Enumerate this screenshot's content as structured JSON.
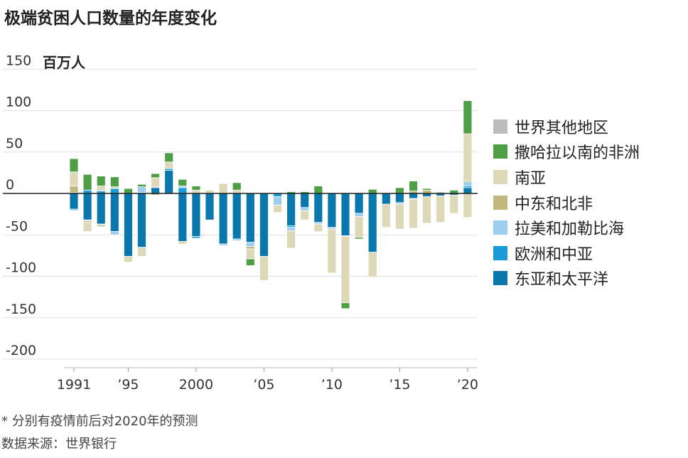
{
  "chart_data": {
    "type": "bar",
    "stacked": true,
    "title": "极端贫困人口数量的年度变化",
    "ylabel": "百万人",
    "ylim": [
      -200,
      150
    ],
    "yticks": [
      150,
      100,
      50,
      0,
      -50,
      -100,
      -150,
      -200
    ],
    "ytick_labels": [
      "150",
      "100",
      "50",
      "0",
      "-50",
      "-100",
      "-150",
      "-200"
    ],
    "x_tick_years": [
      1991,
      1995,
      2000,
      2005,
      2010,
      2015,
      2020
    ],
    "x_tick_labels": [
      "1991",
      "’95",
      "2000",
      "’05",
      "’10",
      "’15",
      "’20"
    ],
    "series_order": [
      "世界其他地区",
      "撒哈拉以南的非洲",
      "南亚",
      "中东和北非",
      "拉美和加勒比海",
      "欧洲和中亚",
      "东亚和太平洋"
    ],
    "legend": [
      {
        "name": "世界其他地区",
        "color": "#bcbcbc"
      },
      {
        "name": "撒哈拉以南的非洲",
        "color": "#4e9e45"
      },
      {
        "name": "南亚",
        "color": "#ddd9b8"
      },
      {
        "name": "中东和北非",
        "color": "#bfb97d"
      },
      {
        "name": "拉美和加勒比海",
        "color": "#9ccdec"
      },
      {
        "name": "欧洲和中亚",
        "color": "#1a9bd7"
      },
      {
        "name": "东亚和太平洋",
        "color": "#0a77ad"
      }
    ],
    "bars": [
      {
        "year": 1991,
        "segments": [
          {
            "s": "东亚和太平洋",
            "v": -19
          },
          {
            "s": "欧洲和中亚",
            "v": 1
          },
          {
            "s": "拉美和加勒比海",
            "v": -2
          },
          {
            "s": "中东和北非",
            "v": 8
          },
          {
            "s": "南亚",
            "v": 17
          },
          {
            "s": "撒哈拉以南的非洲",
            "v": 16
          }
        ]
      },
      {
        "year": 1992,
        "segments": [
          {
            "s": "东亚和太平洋",
            "v": -32
          },
          {
            "s": "欧洲和中亚",
            "v": 4
          },
          {
            "s": "拉美和加勒比海",
            "v": -1
          },
          {
            "s": "中东和北非",
            "v": -2
          },
          {
            "s": "南亚",
            "v": -11
          },
          {
            "s": "撒哈拉以南的非洲",
            "v": 19
          }
        ]
      },
      {
        "year": 1993,
        "segments": [
          {
            "s": "东亚和太平洋",
            "v": -37
          },
          {
            "s": "欧洲和中亚",
            "v": 3
          },
          {
            "s": "拉美和加勒比海",
            "v": -1
          },
          {
            "s": "中东和北非",
            "v": -2
          },
          {
            "s": "南亚",
            "v": 6
          },
          {
            "s": "撒哈拉以南的非洲",
            "v": 12
          }
        ]
      },
      {
        "year": 1994,
        "segments": [
          {
            "s": "东亚和太平洋",
            "v": -46
          },
          {
            "s": "欧洲和中亚",
            "v": 6
          },
          {
            "s": "拉美和加勒比海",
            "v": -4
          },
          {
            "s": "南亚",
            "v": 2
          },
          {
            "s": "撒哈拉以南的非洲",
            "v": 12
          }
        ]
      },
      {
        "year": 1995,
        "segments": [
          {
            "s": "东亚和太平洋",
            "v": -76
          },
          {
            "s": "欧洲和中亚",
            "v": 0
          },
          {
            "s": "南亚",
            "v": -7
          },
          {
            "s": "撒哈拉以南的非洲",
            "v": 6
          }
        ]
      },
      {
        "year": 1996,
        "segments": [
          {
            "s": "东亚和太平洋",
            "v": -65
          },
          {
            "s": "欧洲和中亚",
            "v": 1
          },
          {
            "s": "拉美和加勒比海",
            "v": 7
          },
          {
            "s": "南亚",
            "v": -11
          },
          {
            "s": "撒哈拉以南的非洲",
            "v": 3
          }
        ]
      },
      {
        "year": 1997,
        "segments": [
          {
            "s": "东亚和太平洋",
            "v": 7
          },
          {
            "s": "欧洲和中亚",
            "v": 1
          },
          {
            "s": "中东和北非",
            "v": -2
          },
          {
            "s": "南亚",
            "v": 11
          },
          {
            "s": "撒哈拉以南的非洲",
            "v": 5
          }
        ]
      },
      {
        "year": 1998,
        "segments": [
          {
            "s": "东亚和太平洋",
            "v": 28
          },
          {
            "s": "欧洲和中亚",
            "v": 2
          },
          {
            "s": "南亚",
            "v": 8
          },
          {
            "s": "撒哈拉以南的非洲",
            "v": 11
          }
        ]
      },
      {
        "year": 1999,
        "segments": [
          {
            "s": "东亚和太平洋",
            "v": -58
          },
          {
            "s": "欧洲和中亚",
            "v": 7
          },
          {
            "s": "拉美和加勒比海",
            "v": 2
          },
          {
            "s": "南亚",
            "v": -3
          },
          {
            "s": "撒哈拉以南的非洲",
            "v": 8
          }
        ]
      },
      {
        "year": 2000,
        "segments": [
          {
            "s": "东亚和太平洋",
            "v": -52
          },
          {
            "s": "欧洲和中亚",
            "v": -2
          },
          {
            "s": "南亚",
            "v": 4
          },
          {
            "s": "撒哈拉以南的非洲",
            "v": 5
          }
        ]
      },
      {
        "year": 2001,
        "segments": [
          {
            "s": "东亚和太平洋",
            "v": -32
          },
          {
            "s": "南亚",
            "v": 4
          }
        ]
      },
      {
        "year": 2002,
        "segments": [
          {
            "s": "东亚和太平洋",
            "v": -61
          },
          {
            "s": "拉美和加勒比海",
            "v": -2
          },
          {
            "s": "南亚",
            "v": 12
          }
        ]
      },
      {
        "year": 2003,
        "segments": [
          {
            "s": "东亚和太平洋",
            "v": -55
          },
          {
            "s": "拉美和加勒比海",
            "v": -2
          },
          {
            "s": "南亚",
            "v": 4
          },
          {
            "s": "撒哈拉以南的非洲",
            "v": 9
          }
        ]
      },
      {
        "year": 2004,
        "segments": [
          {
            "s": "东亚和太平洋",
            "v": -59
          },
          {
            "s": "拉美和加勒比海",
            "v": -5
          },
          {
            "s": "中东和北非",
            "v": -3
          },
          {
            "s": "南亚",
            "v": -12
          },
          {
            "s": "撒哈拉以南的非洲",
            "v": -8
          }
        ]
      },
      {
        "year": 2005,
        "segments": [
          {
            "s": "东亚和太平洋",
            "v": -76
          },
          {
            "s": "南亚",
            "v": -29
          }
        ]
      },
      {
        "year": 2006,
        "segments": [
          {
            "s": "欧洲和中亚",
            "v": -4
          },
          {
            "s": "拉美和加勒比海",
            "v": -10
          },
          {
            "s": "南亚",
            "v": -9
          }
        ]
      },
      {
        "year": 2007,
        "segments": [
          {
            "s": "东亚和太平洋",
            "v": -39
          },
          {
            "s": "欧洲和中亚",
            "v": -2
          },
          {
            "s": "拉美和加勒比海",
            "v": -4
          },
          {
            "s": "南亚",
            "v": -21
          },
          {
            "s": "撒哈拉以南的非洲",
            "v": 2
          }
        ]
      },
      {
        "year": 2008,
        "segments": [
          {
            "s": "东亚和太平洋",
            "v": -17
          },
          {
            "s": "拉美和加勒比海",
            "v": -4
          },
          {
            "s": "南亚",
            "v": -11
          },
          {
            "s": "撒哈拉以南的非洲",
            "v": 2
          }
        ]
      },
      {
        "year": 2009,
        "segments": [
          {
            "s": "东亚和太平洋",
            "v": -35
          },
          {
            "s": "拉美和加勒比海",
            "v": -2
          },
          {
            "s": "南亚",
            "v": -9
          },
          {
            "s": "撒哈拉以南的非洲",
            "v": 9
          }
        ]
      },
      {
        "year": 2010,
        "segments": [
          {
            "s": "东亚和太平洋",
            "v": -41
          },
          {
            "s": "拉美和加勒比海",
            "v": -2
          },
          {
            "s": "南亚",
            "v": -53
          }
        ]
      },
      {
        "year": 2011,
        "segments": [
          {
            "s": "东亚和太平洋",
            "v": -51
          },
          {
            "s": "拉美和加勒比海",
            "v": -1
          },
          {
            "s": "南亚",
            "v": -80
          },
          {
            "s": "撒哈拉以南的非洲",
            "v": -7
          }
        ]
      },
      {
        "year": 2012,
        "segments": [
          {
            "s": "东亚和太平洋",
            "v": -24
          },
          {
            "s": "拉美和加勒比海",
            "v": -4
          },
          {
            "s": "南亚",
            "v": -25
          },
          {
            "s": "撒哈拉以南的非洲",
            "v": -2
          }
        ]
      },
      {
        "year": 2013,
        "segments": [
          {
            "s": "东亚和太平洋",
            "v": -71
          },
          {
            "s": "南亚",
            "v": -30
          },
          {
            "s": "撒哈拉以南的非洲",
            "v": 5
          }
        ]
      },
      {
        "year": 2014,
        "segments": [
          {
            "s": "东亚和太平洋",
            "v": -13
          },
          {
            "s": "南亚",
            "v": -28
          }
        ]
      },
      {
        "year": 2015,
        "segments": [
          {
            "s": "东亚和太平洋",
            "v": -11
          },
          {
            "s": "拉美和加勒比海",
            "v": -2
          },
          {
            "s": "南亚",
            "v": -30
          },
          {
            "s": "撒哈拉以南的非洲",
            "v": 7
          }
        ]
      },
      {
        "year": 2016,
        "segments": [
          {
            "s": "东亚和太平洋",
            "v": -6
          },
          {
            "s": "拉美和加勒比海",
            "v": -1
          },
          {
            "s": "中东和北非",
            "v": 3
          },
          {
            "s": "南亚",
            "v": -35
          },
          {
            "s": "撒哈拉以南的非洲",
            "v": 12
          }
        ]
      },
      {
        "year": 2017,
        "segments": [
          {
            "s": "东亚和太平洋",
            "v": -4
          },
          {
            "s": "中东和北非",
            "v": 4
          },
          {
            "s": "南亚",
            "v": -32
          },
          {
            "s": "撒哈拉以南的非洲",
            "v": 2
          }
        ]
      },
      {
        "year": 2018,
        "segments": [
          {
            "s": "东亚和太平洋",
            "v": -3
          },
          {
            "s": "中东和北非",
            "v": 1
          },
          {
            "s": "南亚",
            "v": -32
          },
          {
            "s": "撒哈拉以南的非洲",
            "v": 1
          }
        ]
      },
      {
        "year": 2019,
        "segments": [
          {
            "s": "东亚和太平洋",
            "v": -2
          },
          {
            "s": "南亚",
            "v": -22
          },
          {
            "s": "撒哈拉以南的非洲",
            "v": 4
          }
        ]
      },
      {
        "year": 2020,
        "segments": [
          {
            "s": "东亚和太平洋",
            "v": 7
          },
          {
            "s": "欧洲和中亚",
            "v": 2
          },
          {
            "s": "拉美和加勒比海",
            "v": 5
          },
          {
            "s": "中东和北非",
            "v": 2
          },
          {
            "s": "南亚",
            "v": -29
          },
          {
            "s": "南亚",
            "v": 56
          },
          {
            "s": "撒哈拉以南的非洲",
            "v": 40
          }
        ]
      }
    ],
    "footnote": "* 分别有疫情前后对2020年的预测",
    "source": "数据来源：世界银行"
  }
}
